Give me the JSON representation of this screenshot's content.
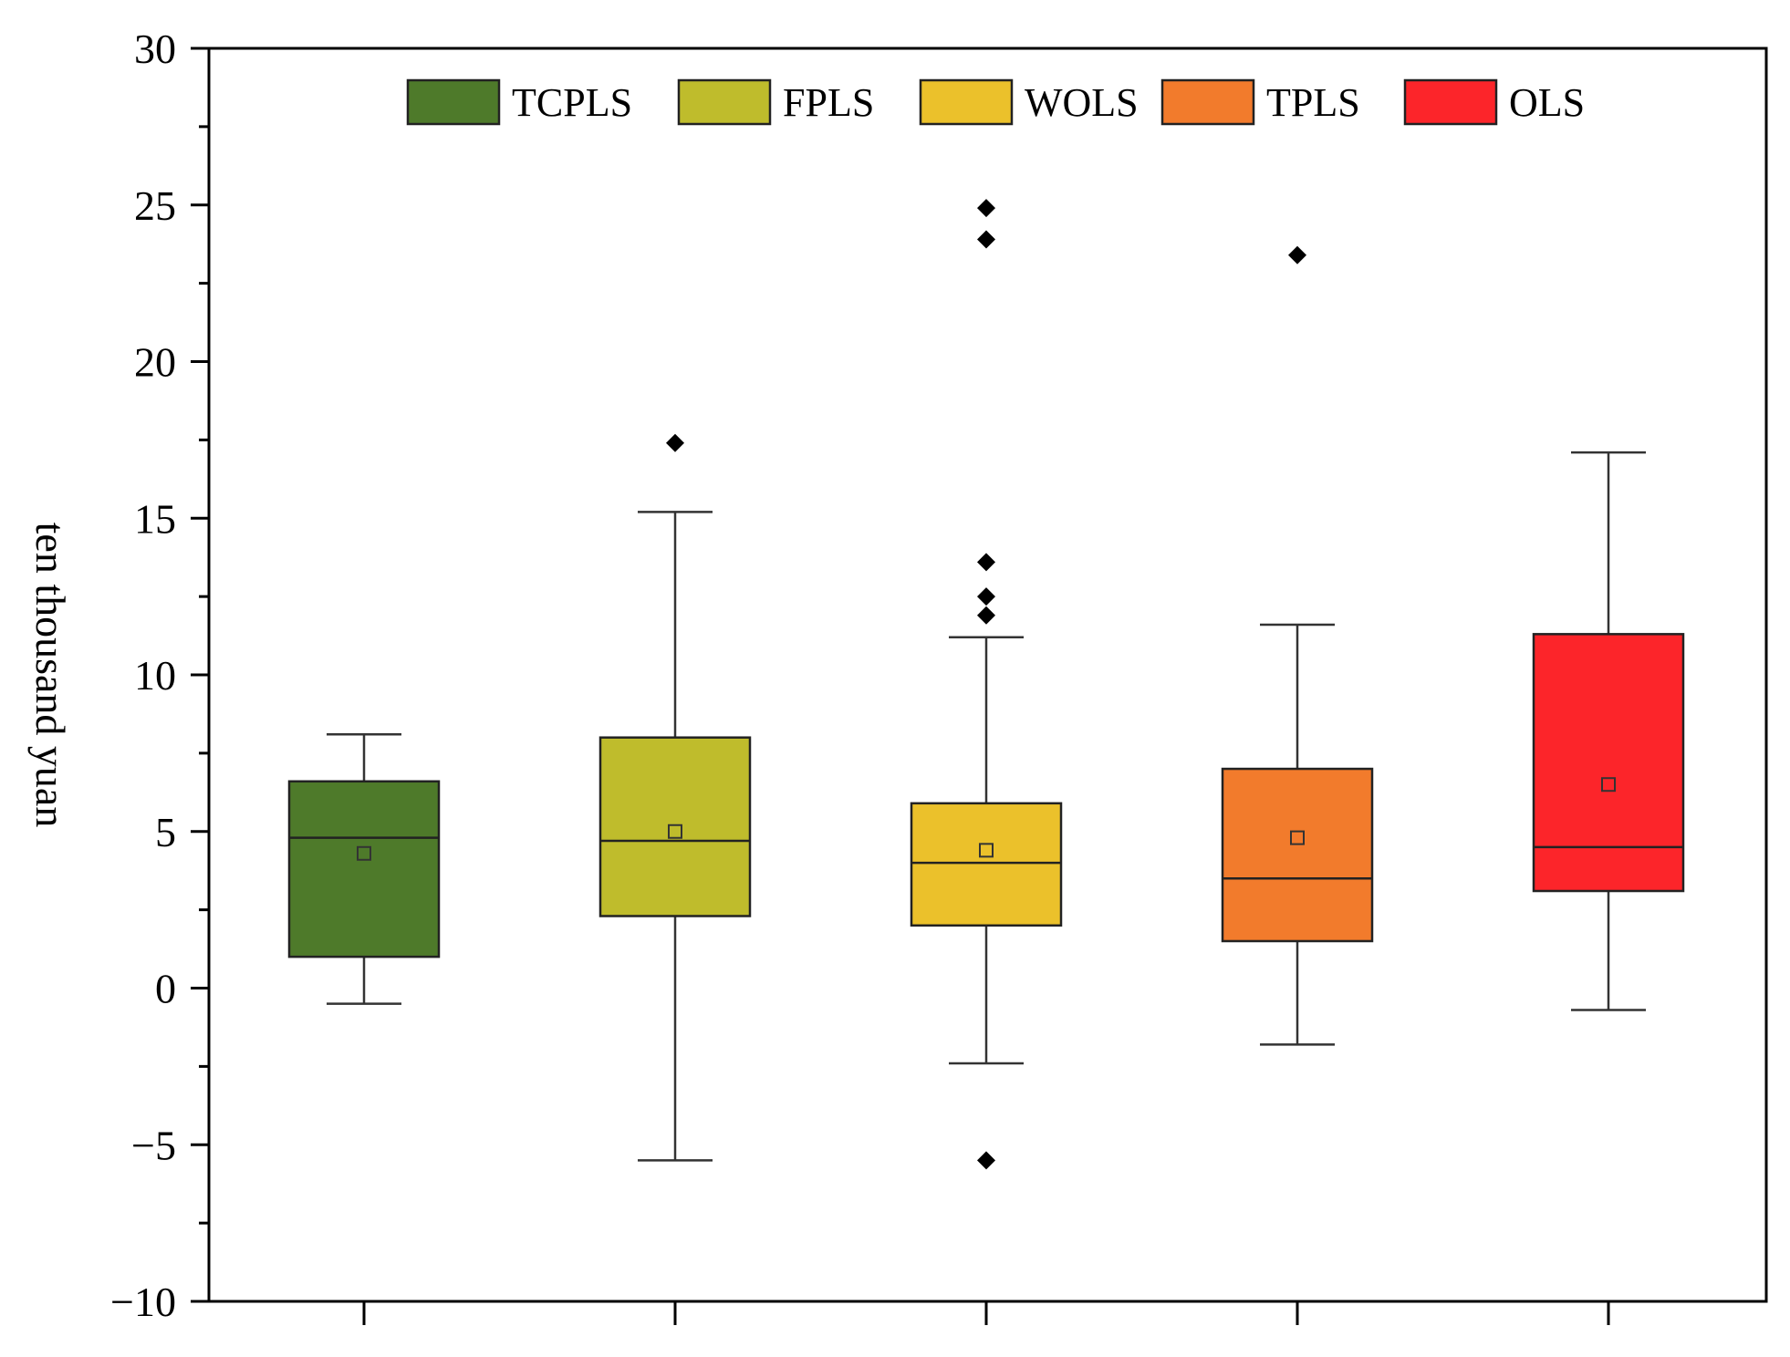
{
  "chart_data": {
    "type": "boxplot",
    "title": "",
    "xlabel": "",
    "ylabel": "ten thousand yuan",
    "ylim": [
      -10,
      30
    ],
    "yticks": [
      -10,
      -5,
      0,
      5,
      10,
      15,
      20,
      25,
      30
    ],
    "ytick_labels": [
      "−10",
      "−5",
      "0",
      "5",
      "10",
      "15",
      "20",
      "25",
      "30"
    ],
    "grid": false,
    "legend_position": "top",
    "categories": [
      "TCPLS",
      "FPLS",
      "WOLS",
      "TPLS",
      "OLS"
    ],
    "series": [
      {
        "name": "TCPLS",
        "color": "#4e7a2a",
        "whisker_low": -0.5,
        "q1": 1.0,
        "median": 4.8,
        "q3": 6.6,
        "whisker_high": 8.1,
        "mean": 4.3,
        "outliers": []
      },
      {
        "name": "FPLS",
        "color": "#bfbc2c",
        "whisker_low": -5.5,
        "q1": 2.3,
        "median": 4.7,
        "q3": 8.0,
        "whisker_high": 15.2,
        "mean": 5.0,
        "outliers": [
          17.4
        ]
      },
      {
        "name": "WOLS",
        "color": "#ebc12b",
        "whisker_low": -2.4,
        "q1": 2.0,
        "median": 4.0,
        "q3": 5.9,
        "whisker_high": 11.2,
        "mean": 4.4,
        "outliers": [
          24.9,
          23.9,
          13.6,
          12.5,
          11.9,
          -5.5
        ]
      },
      {
        "name": "TPLS",
        "color": "#f27b2c",
        "whisker_low": -1.8,
        "q1": 1.5,
        "median": 3.5,
        "q3": 7.0,
        "whisker_high": 11.6,
        "mean": 4.8,
        "outliers": [
          23.4
        ]
      },
      {
        "name": "OLS",
        "color": "#fc252a",
        "whisker_low": -0.7,
        "q1": 3.1,
        "median": 4.5,
        "q3": 11.3,
        "whisker_high": 17.1,
        "mean": 6.5,
        "outliers": []
      }
    ]
  }
}
